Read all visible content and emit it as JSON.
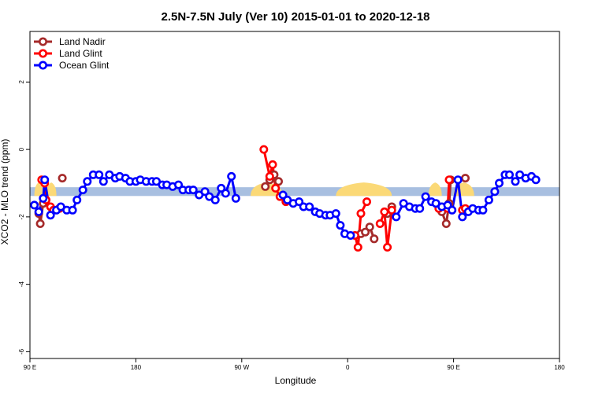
{
  "chart_data": {
    "type": "line",
    "title": "2.5N-7.5N July (Ver 10)   2015-01-01 to 2020-12-18",
    "xlabel": "Longitude",
    "ylabel": "XCO2 - MLO trend (ppm)",
    "xlim": [
      90,
      450
    ],
    "ylim": [
      -6.2,
      3.5
    ],
    "xticks": [
      {
        "value": 90,
        "label": "90 E"
      },
      {
        "value": 162,
        "label": "180"
      },
      {
        "value": 234,
        "label": "90 W"
      },
      {
        "value": 306,
        "label": "0"
      },
      {
        "value": 378,
        "label": "90 E"
      },
      {
        "value": 450,
        "label": "180"
      }
    ],
    "yticks": [
      {
        "value": 2,
        "label": "2"
      },
      {
        "value": 0,
        "label": "0"
      },
      {
        "value": -2,
        "label": "-2"
      },
      {
        "value": -4,
        "label": "-4"
      },
      {
        "value": -6,
        "label": "-6"
      }
    ],
    "legend_position": "top-left",
    "band": {
      "y_center": -1.25,
      "half_height": 0.13,
      "color": "#a8bfe0"
    },
    "land_color": "#fbd977",
    "series": [
      {
        "name": "Land Nadir",
        "color": "#a52a2a",
        "segments": [
          [
            [
              96,
              -1.9
            ],
            [
              97,
              -2.2
            ],
            [
              99,
              -1.6
            ]
          ],
          [
            [
              112,
              -0.85
            ]
          ],
          [
            [
              250,
              -1.1
            ],
            [
              253,
              -0.9
            ],
            [
              256,
              -0.75
            ],
            [
              259,
              -0.95
            ]
          ],
          [
            [
              315,
              -2.5
            ],
            [
              318,
              -2.45
            ],
            [
              321,
              -2.3
            ],
            [
              324,
              -2.65
            ]
          ],
          [
            [
              333,
              -1.9
            ],
            [
              336,
              -1.7
            ]
          ],
          [
            [
              370,
              -1.85
            ],
            [
              373,
              -2.2
            ],
            [
              375,
              -1.6
            ],
            [
              376,
              -0.9
            ]
          ],
          [
            [
              386,
              -0.85
            ]
          ]
        ]
      },
      {
        "name": "Land Glint",
        "color": "#ff0000",
        "segments": [
          [
            [
              98,
              -0.9
            ],
            [
              100,
              -1.0
            ],
            [
              101,
              -1.5
            ]
          ],
          [
            [
              104,
              -1.7
            ],
            [
              106,
              -1.8
            ]
          ],
          [
            [
              110,
              -1.75
            ]
          ],
          [
            [
              249,
              0.0
            ],
            [
              253,
              -0.8
            ],
            [
              255,
              -0.45
            ],
            [
              257,
              -1.15
            ],
            [
              260,
              -1.4
            ],
            [
              264,
              -1.55
            ]
          ],
          [
            [
              311,
              -2.55
            ],
            [
              313,
              -2.9
            ],
            [
              315,
              -1.9
            ],
            [
              319,
              -1.55
            ]
          ],
          [
            [
              328,
              -2.2
            ],
            [
              331,
              -1.85
            ],
            [
              333,
              -2.9
            ],
            [
              336,
              -1.8
            ]
          ],
          [
            [
              368,
              -1.75
            ],
            [
              374,
              -1.75
            ],
            [
              375,
              -0.9
            ]
          ],
          [
            [
              384,
              -1.8
            ],
            [
              386,
              -1.75
            ]
          ]
        ]
      },
      {
        "name": "Ocean Glint",
        "color": "#0000ff",
        "segments": [
          [
            [
              93,
              -1.65
            ],
            [
              96,
              -1.85
            ],
            [
              99,
              -1.45
            ],
            [
              100,
              -0.9
            ],
            [
              104,
              -1.95
            ],
            [
              108,
              -1.8
            ],
            [
              111,
              -1.7
            ],
            [
              115,
              -1.8
            ],
            [
              119,
              -1.8
            ],
            [
              122,
              -1.5
            ],
            [
              126,
              -1.2
            ],
            [
              129,
              -0.95
            ],
            [
              133,
              -0.75
            ],
            [
              137,
              -0.75
            ],
            [
              140,
              -0.95
            ],
            [
              144,
              -0.75
            ],
            [
              148,
              -0.85
            ],
            [
              151,
              -0.8
            ],
            [
              155,
              -0.85
            ],
            [
              158,
              -0.95
            ],
            [
              162,
              -0.95
            ],
            [
              165,
              -0.9
            ],
            [
              169,
              -0.95
            ],
            [
              173,
              -0.95
            ],
            [
              176,
              -0.95
            ],
            [
              180,
              -1.05
            ],
            [
              183,
              -1.05
            ],
            [
              187,
              -1.1
            ],
            [
              191,
              -1.05
            ],
            [
              194,
              -1.2
            ],
            [
              198,
              -1.2
            ],
            [
              201,
              -1.2
            ],
            [
              205,
              -1.35
            ],
            [
              209,
              -1.25
            ],
            [
              212,
              -1.4
            ],
            [
              216,
              -1.5
            ],
            [
              220,
              -1.15
            ],
            [
              223,
              -1.3
            ],
            [
              227,
              -0.8
            ],
            [
              230,
              -1.45
            ]
          ],
          [
            [
              262,
              -1.35
            ],
            [
              265,
              -1.5
            ],
            [
              269,
              -1.6
            ],
            [
              273,
              -1.55
            ],
            [
              276,
              -1.7
            ],
            [
              280,
              -1.7
            ],
            [
              284,
              -1.85
            ],
            [
              287,
              -1.9
            ],
            [
              291,
              -1.95
            ],
            [
              294,
              -1.95
            ],
            [
              298,
              -1.9
            ],
            [
              301,
              -2.25
            ],
            [
              304,
              -2.5
            ],
            [
              308,
              -2.55
            ]
          ],
          [
            [
              339,
              -2.0
            ],
            [
              344,
              -1.6
            ],
            [
              348,
              -1.7
            ],
            [
              352,
              -1.75
            ],
            [
              355,
              -1.75
            ],
            [
              359,
              -1.4
            ],
            [
              363,
              -1.55
            ],
            [
              366,
              -1.6
            ],
            [
              370,
              -1.7
            ],
            [
              374,
              -1.65
            ],
            [
              377,
              -1.8
            ],
            [
              381,
              -0.9
            ],
            [
              384,
              -2.0
            ],
            [
              388,
              -1.85
            ],
            [
              391,
              -1.75
            ],
            [
              395,
              -1.8
            ],
            [
              398,
              -1.8
            ],
            [
              402,
              -1.5
            ],
            [
              406,
              -1.25
            ],
            [
              409,
              -1.0
            ],
            [
              413,
              -0.75
            ],
            [
              416,
              -0.75
            ],
            [
              420,
              -0.95
            ],
            [
              423,
              -0.75
            ],
            [
              427,
              -0.85
            ],
            [
              431,
              -0.8
            ],
            [
              434,
              -0.9
            ]
          ]
        ]
      }
    ],
    "land_regions": [
      [
        93,
        99
      ],
      [
        101,
        108
      ],
      [
        240,
        262
      ],
      [
        298,
        336
      ],
      [
        361,
        370
      ],
      [
        378,
        392
      ]
    ]
  }
}
